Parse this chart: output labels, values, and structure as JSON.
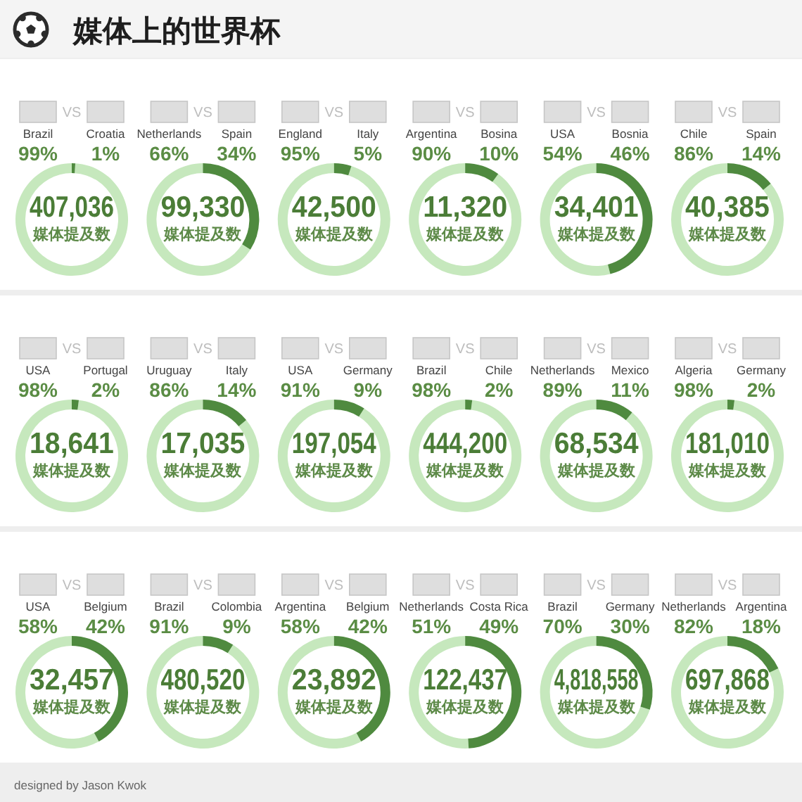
{
  "chart_data": [
    {
      "type": "other",
      "title": "媒体上的世界杯",
      "annotations": [
        "designed by Jason Kwok"
      ]
    },
    {
      "type": "donut",
      "categories": [
        "Brazil",
        "Croatia"
      ],
      "values": [
        99,
        1
      ],
      "colors": [
        "#c6e8bd",
        "#4f8a3f"
      ],
      "value_labels": [
        "99%",
        "1%"
      ],
      "annotations": [
        "VS",
        "407,036",
        "媒体提及数"
      ]
    },
    {
      "type": "donut",
      "categories": [
        "Netherlands",
        "Spain"
      ],
      "values": [
        66,
        34
      ],
      "colors": [
        "#c6e8bd",
        "#4f8a3f"
      ],
      "value_labels": [
        "66%",
        "34%"
      ],
      "annotations": [
        "VS",
        "99,330",
        "媒体提及数"
      ]
    },
    {
      "type": "donut",
      "categories": [
        "England",
        "Italy"
      ],
      "values": [
        95,
        5
      ],
      "colors": [
        "#c6e8bd",
        "#4f8a3f"
      ],
      "value_labels": [
        "95%",
        "5%"
      ],
      "annotations": [
        "VS",
        "42,500",
        "媒体提及数"
      ]
    },
    {
      "type": "donut",
      "categories": [
        "Argentina",
        "Bosina"
      ],
      "values": [
        90,
        10
      ],
      "colors": [
        "#c6e8bd",
        "#4f8a3f"
      ],
      "value_labels": [
        "90%",
        "10%"
      ],
      "annotations": [
        "VS",
        "11,320",
        "媒体提及数"
      ]
    },
    {
      "type": "donut",
      "categories": [
        "USA",
        "Bosnia"
      ],
      "values": [
        54,
        46
      ],
      "colors": [
        "#c6e8bd",
        "#4f8a3f"
      ],
      "value_labels": [
        "54%",
        "46%"
      ],
      "annotations": [
        "VS",
        "34,401",
        "媒体提及数"
      ]
    },
    {
      "type": "donut",
      "categories": [
        "Chile",
        "Spain"
      ],
      "values": [
        86,
        14
      ],
      "colors": [
        "#c6e8bd",
        "#4f8a3f"
      ],
      "value_labels": [
        "86%",
        "14%"
      ],
      "annotations": [
        "VS",
        "40,385",
        "媒体提及数"
      ]
    },
    {
      "type": "donut",
      "categories": [
        "USA",
        "Portugal"
      ],
      "values": [
        98,
        2
      ],
      "colors": [
        "#c6e8bd",
        "#4f8a3f"
      ],
      "value_labels": [
        "98%",
        "2%"
      ],
      "annotations": [
        "VS",
        "18,641",
        "媒体提及数"
      ]
    },
    {
      "type": "donut",
      "categories": [
        "Uruguay",
        "Italy"
      ],
      "values": [
        86,
        14
      ],
      "colors": [
        "#c6e8bd",
        "#4f8a3f"
      ],
      "value_labels": [
        "86%",
        "14%"
      ],
      "annotations": [
        "VS",
        "17,035",
        "媒体提及数"
      ]
    },
    {
      "type": "donut",
      "categories": [
        "USA",
        "Germany"
      ],
      "values": [
        91,
        9
      ],
      "colors": [
        "#c6e8bd",
        "#4f8a3f"
      ],
      "value_labels": [
        "91%",
        "9%"
      ],
      "annotations": [
        "VS",
        "197,054",
        "媒体提及数"
      ]
    },
    {
      "type": "donut",
      "categories": [
        "Brazil",
        "Chile"
      ],
      "values": [
        98,
        2
      ],
      "colors": [
        "#c6e8bd",
        "#4f8a3f"
      ],
      "value_labels": [
        "98%",
        "2%"
      ],
      "annotations": [
        "VS",
        "444,200",
        "媒体提及数"
      ]
    },
    {
      "type": "donut",
      "categories": [
        "Netherlands",
        "Mexico"
      ],
      "values": [
        89,
        11
      ],
      "colors": [
        "#c6e8bd",
        "#4f8a3f"
      ],
      "value_labels": [
        "89%",
        "11%"
      ],
      "annotations": [
        "VS",
        "68,534",
        "媒体提及数"
      ]
    },
    {
      "type": "donut",
      "categories": [
        "Algeria",
        "Germany"
      ],
      "values": [
        98,
        2
      ],
      "colors": [
        "#c6e8bd",
        "#4f8a3f"
      ],
      "value_labels": [
        "98%",
        "2%"
      ],
      "annotations": [
        "VS",
        "181,010",
        "媒体提及数"
      ]
    },
    {
      "type": "donut",
      "categories": [
        "USA",
        "Belgium"
      ],
      "values": [
        58,
        42
      ],
      "colors": [
        "#c6e8bd",
        "#4f8a3f"
      ],
      "value_labels": [
        "58%",
        "42%"
      ],
      "annotations": [
        "VS",
        "32,457",
        "媒体提及数"
      ]
    },
    {
      "type": "donut",
      "categories": [
        "Brazil",
        "Colombia"
      ],
      "values": [
        91,
        9
      ],
      "colors": [
        "#c6e8bd",
        "#4f8a3f"
      ],
      "value_labels": [
        "91%",
        "9%"
      ],
      "annotations": [
        "VS",
        "480,520",
        "媒体提及数"
      ]
    },
    {
      "type": "donut",
      "categories": [
        "Argentina",
        "Belgium"
      ],
      "values": [
        58,
        42
      ],
      "colors": [
        "#c6e8bd",
        "#4f8a3f"
      ],
      "value_labels": [
        "58%",
        "42%"
      ],
      "annotations": [
        "VS",
        "23,892",
        "媒体提及数"
      ]
    },
    {
      "type": "donut",
      "categories": [
        "Netherlands",
        "Costa Rica"
      ],
      "values": [
        51,
        49
      ],
      "colors": [
        "#c6e8bd",
        "#4f8a3f"
      ],
      "value_labels": [
        "51%",
        "49%"
      ],
      "annotations": [
        "VS",
        "122,437",
        "媒体提及数"
      ]
    },
    {
      "type": "donut",
      "categories": [
        "Brazil",
        "Germany"
      ],
      "values": [
        70,
        30
      ],
      "colors": [
        "#c6e8bd",
        "#4f8a3f"
      ],
      "value_labels": [
        "70%",
        "30%"
      ],
      "annotations": [
        "VS",
        "4,818,558",
        "媒体提及数"
      ]
    },
    {
      "type": "donut",
      "categories": [
        "Netherlands",
        "Argentina"
      ],
      "values": [
        82,
        18
      ],
      "colors": [
        "#c6e8bd",
        "#4f8a3f"
      ],
      "value_labels": [
        "82%",
        "18%"
      ],
      "annotations": [
        "VS",
        "697,868",
        "媒体提及数"
      ]
    }
  ]
}
